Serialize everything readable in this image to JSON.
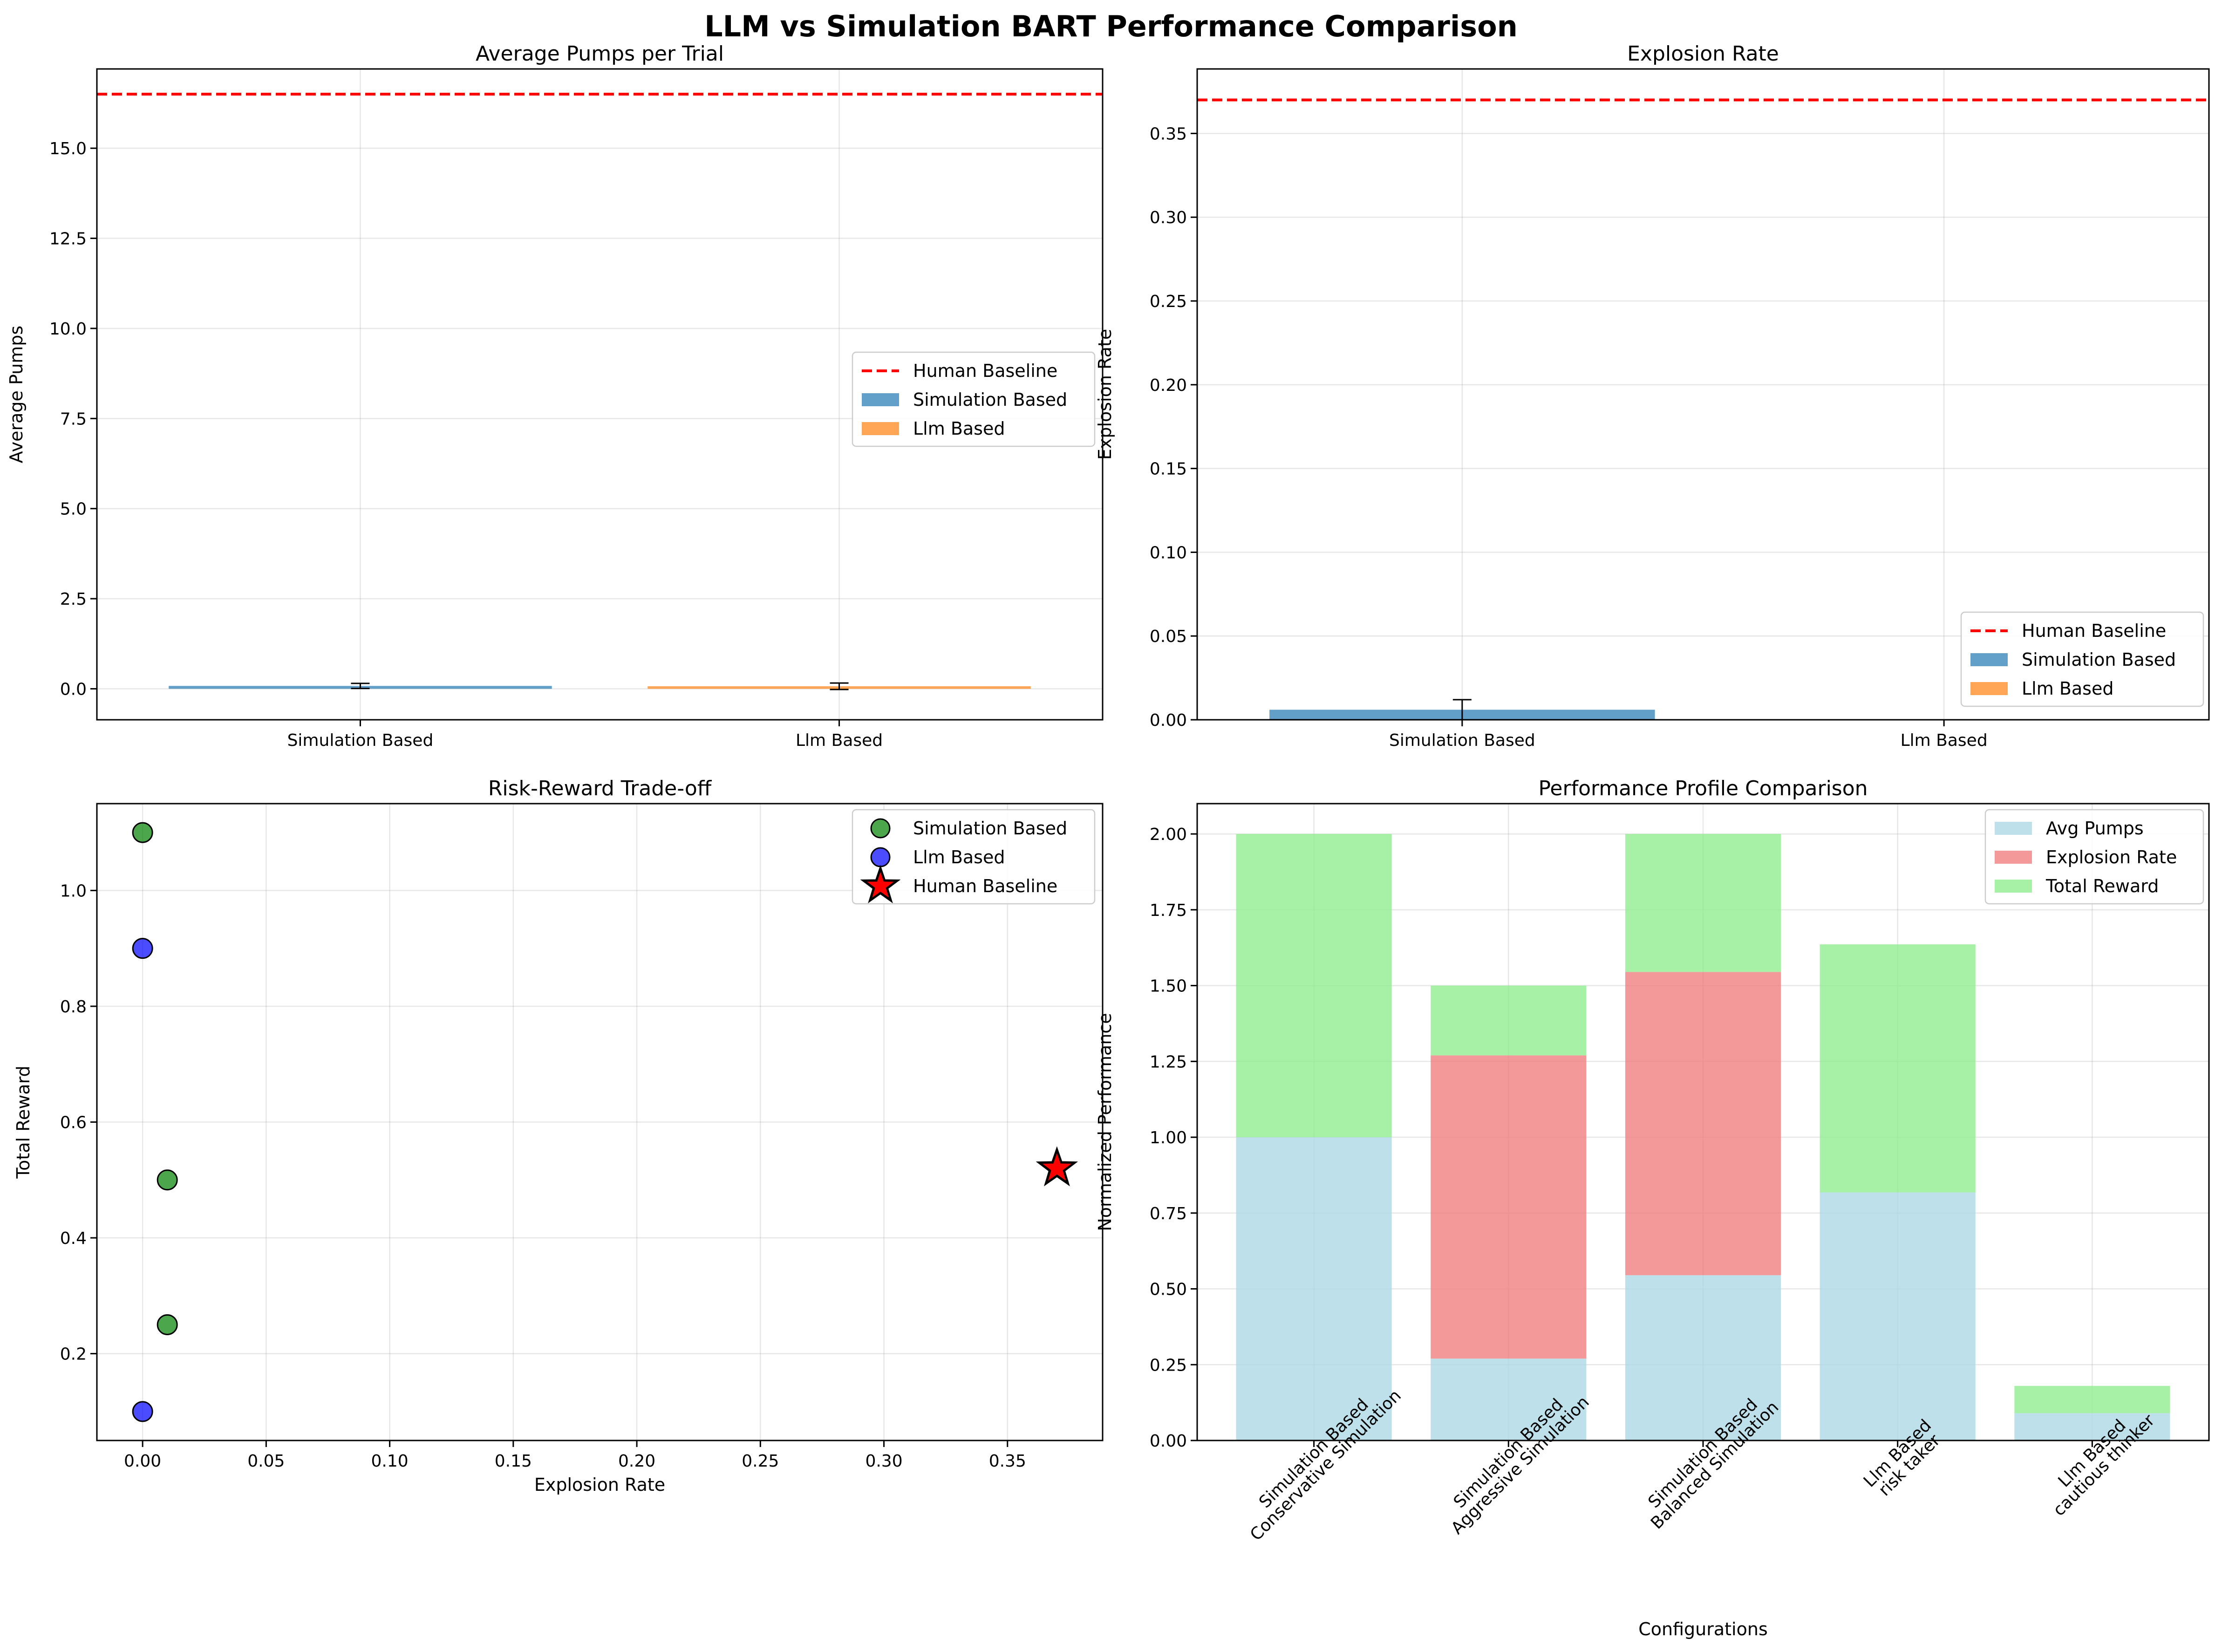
{
  "title": "LLM vs Simulation BART Performance Comparison",
  "colors": {
    "simulation": "#1f77b4",
    "llm": "#ff7f0e",
    "baseline": "#ff0000",
    "avg_pumps": "#add8e6",
    "explosion_rate": "#f08080",
    "total_reward": "#90ee90",
    "scatter_simulation": "#008000",
    "scatter_llm": "#0000ff",
    "star": "#ff0000"
  },
  "chart_data": [
    {
      "id": "pumps",
      "type": "bar",
      "title": "Average Pumps per Trial",
      "xlabel": "",
      "ylabel": "Average Pumps",
      "categories": [
        "Simulation Based",
        "Llm Based"
      ],
      "values": [
        0.08,
        0.07
      ],
      "errors": [
        0.07,
        0.09
      ],
      "baseline": 16.5,
      "ylim": [
        -0.86,
        17.2
      ],
      "yticks": [
        0,
        2.5,
        5,
        7.5,
        10,
        12.5,
        15
      ],
      "ytick_labels": [
        "0.0",
        "2.5",
        "5.0",
        "7.5",
        "10.0",
        "12.5",
        "15.0"
      ],
      "legend": [
        "Human Baseline",
        "Simulation Based",
        "Llm Based"
      ],
      "legend_position": "center-right",
      "grid": true
    },
    {
      "id": "explosion",
      "type": "bar",
      "title": "Explosion Rate",
      "xlabel": "",
      "ylabel": "Explosion Rate",
      "categories": [
        "Simulation Based",
        "Llm Based"
      ],
      "values": [
        0.006,
        0.0
      ],
      "errors": [
        0.006,
        0.0
      ],
      "baseline": 0.37,
      "ylim": [
        0,
        0.3885
      ],
      "yticks": [
        0,
        0.05,
        0.1,
        0.15,
        0.2,
        0.25,
        0.3,
        0.35
      ],
      "ytick_labels": [
        "0.00",
        "0.05",
        "0.10",
        "0.15",
        "0.20",
        "0.25",
        "0.30",
        "0.35"
      ],
      "legend": [
        "Human Baseline",
        "Simulation Based",
        "Llm Based"
      ],
      "legend_position": "lower-right",
      "grid": true
    },
    {
      "id": "riskreward",
      "type": "scatter",
      "title": "Risk-Reward Trade-off",
      "xlabel": "Explosion Rate",
      "ylabel": "Total Reward",
      "series": [
        {
          "name": "Simulation Based",
          "points": [
            [
              0.0,
              1.1
            ],
            [
              0.01,
              0.5
            ],
            [
              0.01,
              0.25
            ]
          ]
        },
        {
          "name": "Llm Based",
          "points": [
            [
              0.0,
              0.9
            ],
            [
              0.0,
              0.1
            ]
          ]
        },
        {
          "name": "Human Baseline",
          "points": [
            [
              0.37,
              0.52
            ]
          ]
        }
      ],
      "xlim": [
        -0.0185,
        0.3885
      ],
      "ylim": [
        0.05,
        1.15
      ],
      "xticks": [
        0,
        0.05,
        0.1,
        0.15,
        0.2,
        0.25,
        0.3,
        0.35
      ],
      "xtick_labels": [
        "0.00",
        "0.05",
        "0.10",
        "0.15",
        "0.20",
        "0.25",
        "0.30",
        "0.35"
      ],
      "yticks": [
        0.2,
        0.4,
        0.6,
        0.8,
        1.0
      ],
      "ytick_labels": [
        "0.2",
        "0.4",
        "0.6",
        "0.8",
        "1.0"
      ],
      "legend_position": "upper-right",
      "grid": true
    },
    {
      "id": "profile",
      "type": "bar",
      "stacked": true,
      "title": "Performance Profile Comparison",
      "xlabel": "Configurations",
      "ylabel": "Normalized Performance",
      "categories": [
        [
          "Simulation Based",
          "Conservative Simulation"
        ],
        [
          "Simulation Based",
          "Aggressive Simulation"
        ],
        [
          "Simulation Based",
          "Balanced Simulation"
        ],
        [
          "Llm Based",
          "risk taker"
        ],
        [
          "Llm Based",
          "cautious thinker"
        ]
      ],
      "series": [
        {
          "name": "Avg Pumps",
          "values": [
            1.0,
            0.27,
            0.545,
            0.818,
            0.09
          ]
        },
        {
          "name": "Explosion Rate",
          "values": [
            0.0,
            1.0,
            1.0,
            0.0,
            0.0
          ]
        },
        {
          "name": "Total Reward",
          "values": [
            1.0,
            0.23,
            0.455,
            0.818,
            0.09
          ]
        }
      ],
      "ylim": [
        0,
        2.1
      ],
      "yticks": [
        0,
        0.25,
        0.5,
        0.75,
        1.0,
        1.25,
        1.5,
        1.75,
        2.0
      ],
      "ytick_labels": [
        "0.00",
        "0.25",
        "0.50",
        "0.75",
        "1.00",
        "1.25",
        "1.50",
        "1.75",
        "2.00"
      ],
      "legend_position": "upper-right",
      "grid": true
    }
  ]
}
